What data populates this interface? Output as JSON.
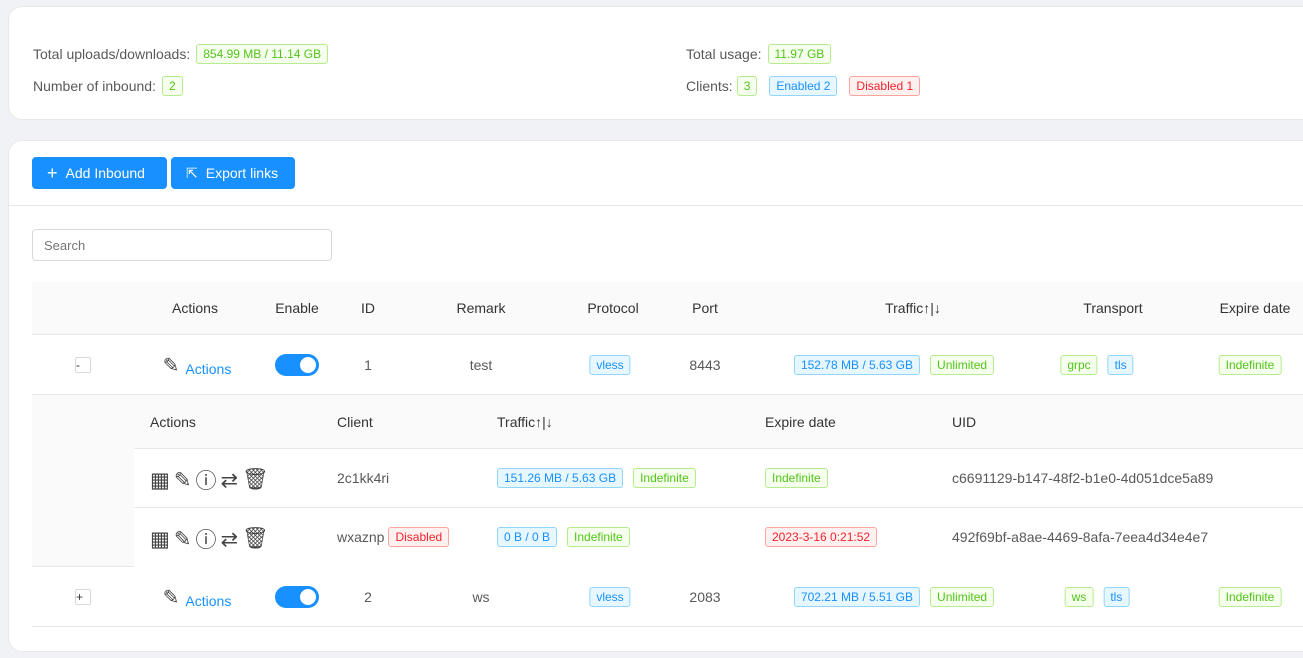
{
  "stats": {
    "total_label": "Total uploads/downloads:",
    "total_value": "854.99 MB / 11.14 GB",
    "inbound_label": "Number of inbound:",
    "inbound_value": "2",
    "usage_label": "Total usage:",
    "usage_value": "11.97 GB",
    "clients_label": "Clients:",
    "clients_value": "3",
    "enabled": "Enabled 2",
    "disabled": "Disabled 1"
  },
  "toolbar": {
    "add": "Add Inbound",
    "export": "Export links"
  },
  "search": {
    "placeholder": "Search"
  },
  "columns": {
    "actions": "Actions",
    "enable": "Enable",
    "id": "ID",
    "remark": "Remark",
    "protocol": "Protocol",
    "port": "Port",
    "traffic": "Traffic↑|↓",
    "transport": "Transport",
    "expire": "Expire date"
  },
  "inbounds": [
    {
      "expand": "-",
      "actions": "Actions",
      "enabled": true,
      "id": "1",
      "remark": "test",
      "protocol": "vless",
      "port": "8443",
      "traffic": "152.78 MB / 5.63 GB",
      "limit": "Unlimited",
      "network": "grpc",
      "security": "tls",
      "expire": "Indefinite"
    },
    {
      "expand": "+",
      "actions": "Actions",
      "enabled": true,
      "id": "2",
      "remark": "ws",
      "protocol": "vless",
      "port": "2083",
      "traffic": "702.21 MB / 5.51 GB",
      "limit": "Unlimited",
      "network": "ws",
      "security": "tls",
      "expire": "Indefinite"
    }
  ],
  "client_columns": {
    "actions": "Actions",
    "client": "Client",
    "traffic": "Traffic↑|↓",
    "expire": "Expire date",
    "uid": "UID"
  },
  "clients": [
    {
      "name": "2c1kk4ri",
      "status": "",
      "traffic": "151.26 MB / 5.63 GB",
      "limit": "Indefinite",
      "expire": "Indefinite",
      "uid": "c6691129-b147-48f2-b1e0-4d051dce5a89"
    },
    {
      "name": "wxaznp",
      "status": "Disabled",
      "traffic": "0 B / 0 B",
      "limit": "Indefinite",
      "expire": "2023-3-16 0:21:52",
      "uid": "492f69bf-a8ae-4469-8afa-7eea4d34e4e7"
    }
  ]
}
